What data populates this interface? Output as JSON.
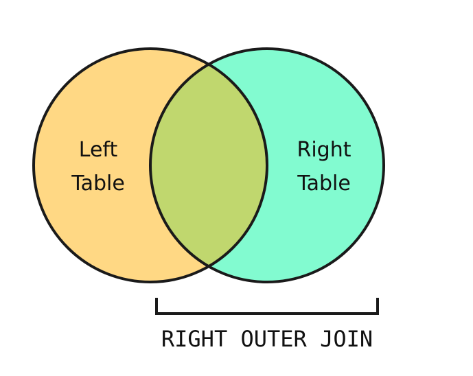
{
  "diagram": {
    "left_circle": {
      "label_line1": "Left",
      "label_line2": "Table",
      "fill_color": "#FFD884"
    },
    "right_circle": {
      "label_line1": "Right",
      "label_line2": "Table",
      "fill_color": "#82FBD0"
    },
    "overlap_color": "#C0D76E",
    "stroke_color": "#1A1A1A",
    "caption": "RIGHT OUTER JOIN"
  }
}
